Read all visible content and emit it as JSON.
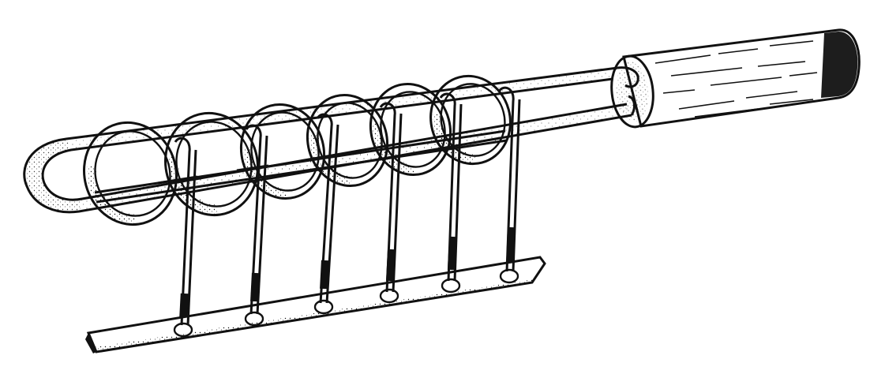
{
  "figure": {
    "subject": "",
    "colors": {
      "ink": "#111111",
      "paper": "#ffffff",
      "handle_fill": "#ffffff"
    },
    "ring_count": 6
  }
}
